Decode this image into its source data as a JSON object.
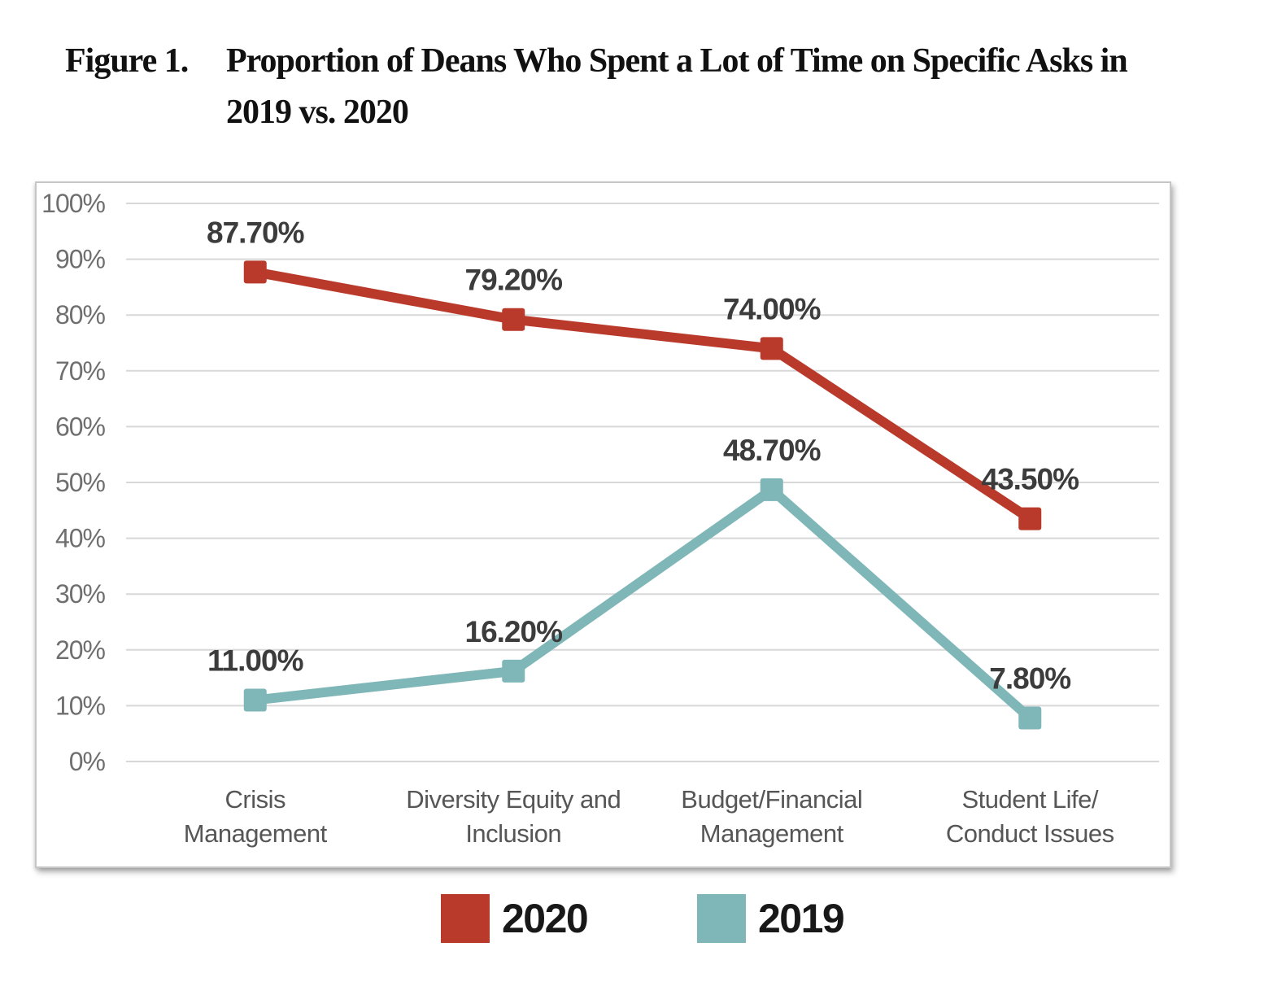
{
  "title": {
    "figure_label": "Figure 1.",
    "line1": "Proportion of Deans Who Spent a Lot of Time on Specific Asks in",
    "line2": "2019 vs. 2020"
  },
  "legend": [
    {
      "label": "2020",
      "color": "#B93A2B"
    },
    {
      "label": "2019",
      "color": "#7FB6B7"
    }
  ],
  "chart_data": {
    "type": "line",
    "title": "Proportion of Deans Who Spent a Lot of Time on Specific Asks in 2019 vs. 2020",
    "categories": [
      "Crisis\nManagement",
      "Diversity Equity and\nInclusion",
      "Budget/Financial\nManagement",
      "Student Life/\nConduct Issues"
    ],
    "series": [
      {
        "name": "2020",
        "color": "#B93A2B",
        "values": [
          87.7,
          79.2,
          74.0,
          43.5
        ],
        "labels": [
          "87.70%",
          "79.20%",
          "74.00%",
          "43.50%"
        ]
      },
      {
        "name": "2019",
        "color": "#7FB6B7",
        "values": [
          11.0,
          16.2,
          48.7,
          7.8
        ],
        "labels": [
          "11.00%",
          "16.20%",
          "48.70%",
          "7.80%"
        ]
      }
    ],
    "ylim": [
      0,
      100
    ],
    "y_tick_step": 10,
    "y_tick_suffix": "%",
    "grid": true,
    "marker": "square",
    "legend_position": "bottom",
    "styles": {
      "grid_color": "#d8d8d8",
      "tick_label_color": "#6f6f6f",
      "category_label_color": "#565656",
      "value_label_color": "#3c3c3c"
    }
  }
}
